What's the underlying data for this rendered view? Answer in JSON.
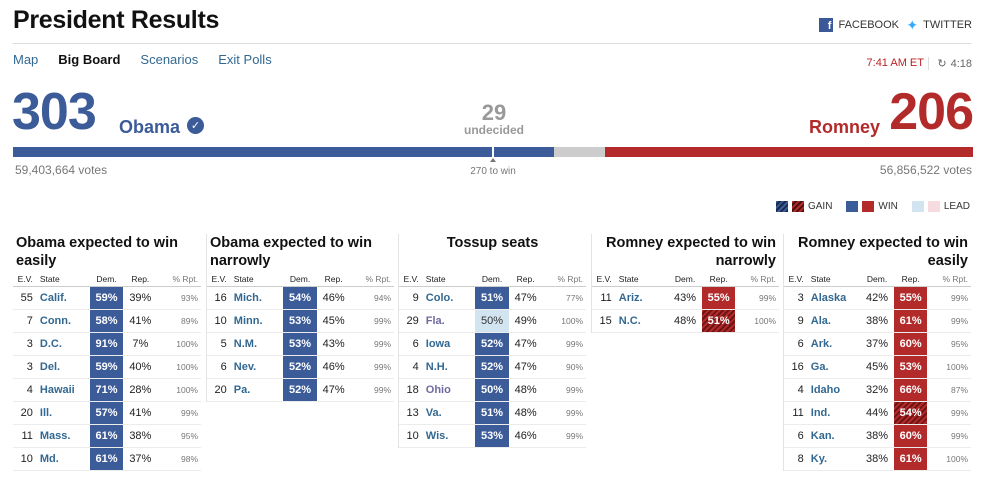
{
  "header": {
    "title": "President Results",
    "facebook": "FACEBOOK",
    "twitter": "TWITTER",
    "time": "7:41 AM ET",
    "refresh": "4:18"
  },
  "nav": [
    "Map",
    "Big Board",
    "Scenarios",
    "Exit Polls"
  ],
  "tally": {
    "dem_ev": "303",
    "dem_name": "Obama",
    "rep_ev": "206",
    "rep_name": "Romney",
    "undecided_ev": "29",
    "undecided_label": "undecided",
    "dem_votes": "59,403,664 votes",
    "rep_votes": "56,856,522 votes",
    "to_win": "270 to win",
    "dem_ev_value": 303,
    "undecided_ev_value": 29,
    "rep_ev_value": 206
  },
  "legend": {
    "gain": "GAIN",
    "win": "WIN",
    "lead": "LEAD"
  },
  "table_header": {
    "ev": "E.V.",
    "state": "State",
    "dem": "Dem.",
    "rep": "Rep.",
    "rpt": "% Rpt."
  },
  "colors": {
    "dem": "#3b5b99",
    "rep": "#b32a2a",
    "undecided": "#cccccc",
    "lead_dem": "#d2e4f0",
    "lead_rep": "#f6dbe0"
  },
  "columns": [
    {
      "title": "Obama expected to win easily",
      "align": "left",
      "rows": [
        {
          "ev": "55",
          "state": "Calif.",
          "dem": "59%",
          "rep": "39%",
          "rpt": "93%",
          "d": "win",
          "r": ""
        },
        {
          "ev": "7",
          "state": "Conn.",
          "dem": "58%",
          "rep": "41%",
          "rpt": "89%",
          "d": "win",
          "r": ""
        },
        {
          "ev": "3",
          "state": "D.C.",
          "dem": "91%",
          "rep": "7%",
          "rpt": "100%",
          "d": "win",
          "r": ""
        },
        {
          "ev": "3",
          "state": "Del.",
          "dem": "59%",
          "rep": "40%",
          "rpt": "100%",
          "d": "win",
          "r": ""
        },
        {
          "ev": "4",
          "state": "Hawaii",
          "dem": "71%",
          "rep": "28%",
          "rpt": "100%",
          "d": "win",
          "r": ""
        },
        {
          "ev": "20",
          "state": "Ill.",
          "dem": "57%",
          "rep": "41%",
          "rpt": "99%",
          "d": "win",
          "r": ""
        },
        {
          "ev": "11",
          "state": "Mass.",
          "dem": "61%",
          "rep": "38%",
          "rpt": "95%",
          "d": "win",
          "r": ""
        },
        {
          "ev": "10",
          "state": "Md.",
          "dem": "61%",
          "rep": "37%",
          "rpt": "98%",
          "d": "win",
          "r": ""
        }
      ]
    },
    {
      "title": "Obama expected to win narrowly",
      "align": "left",
      "rows": [
        {
          "ev": "16",
          "state": "Mich.",
          "dem": "54%",
          "rep": "46%",
          "rpt": "94%",
          "d": "win",
          "r": ""
        },
        {
          "ev": "10",
          "state": "Minn.",
          "dem": "53%",
          "rep": "45%",
          "rpt": "99%",
          "d": "win",
          "r": ""
        },
        {
          "ev": "5",
          "state": "N.M.",
          "dem": "53%",
          "rep": "43%",
          "rpt": "99%",
          "d": "win",
          "r": ""
        },
        {
          "ev": "6",
          "state": "Nev.",
          "dem": "52%",
          "rep": "46%",
          "rpt": "99%",
          "d": "win",
          "r": ""
        },
        {
          "ev": "20",
          "state": "Pa.",
          "dem": "52%",
          "rep": "47%",
          "rpt": "99%",
          "d": "win",
          "r": ""
        }
      ]
    },
    {
      "title": "Tossup seats",
      "align": "center",
      "rows": [
        {
          "ev": "9",
          "state": "Colo.",
          "dem": "51%",
          "rep": "47%",
          "rpt": "77%",
          "d": "win",
          "r": ""
        },
        {
          "ev": "29",
          "state": "Fla.",
          "dem": "50%",
          "rep": "49%",
          "rpt": "100%",
          "d": "lead",
          "r": "",
          "tossup": true
        },
        {
          "ev": "6",
          "state": "Iowa",
          "dem": "52%",
          "rep": "47%",
          "rpt": "99%",
          "d": "win",
          "r": ""
        },
        {
          "ev": "4",
          "state": "N.H.",
          "dem": "52%",
          "rep": "47%",
          "rpt": "90%",
          "d": "win",
          "r": ""
        },
        {
          "ev": "18",
          "state": "Ohio",
          "dem": "50%",
          "rep": "48%",
          "rpt": "99%",
          "d": "win",
          "r": "",
          "tossup": true
        },
        {
          "ev": "13",
          "state": "Va.",
          "dem": "51%",
          "rep": "48%",
          "rpt": "99%",
          "d": "win",
          "r": ""
        },
        {
          "ev": "10",
          "state": "Wis.",
          "dem": "53%",
          "rep": "46%",
          "rpt": "99%",
          "d": "win",
          "r": ""
        }
      ]
    },
    {
      "title": "Romney expected to win narrowly",
      "align": "right",
      "rows": [
        {
          "ev": "11",
          "state": "Ariz.",
          "dem": "43%",
          "rep": "55%",
          "rpt": "99%",
          "d": "",
          "r": "win"
        },
        {
          "ev": "15",
          "state": "N.C.",
          "dem": "48%",
          "rep": "51%",
          "rpt": "100%",
          "d": "",
          "r": "gain"
        }
      ]
    },
    {
      "title": "Romney expected to win easily",
      "align": "right",
      "rows": [
        {
          "ev": "3",
          "state": "Alaska",
          "dem": "42%",
          "rep": "55%",
          "rpt": "99%",
          "d": "",
          "r": "win"
        },
        {
          "ev": "9",
          "state": "Ala.",
          "dem": "38%",
          "rep": "61%",
          "rpt": "99%",
          "d": "",
          "r": "win"
        },
        {
          "ev": "6",
          "state": "Ark.",
          "dem": "37%",
          "rep": "60%",
          "rpt": "95%",
          "d": "",
          "r": "win"
        },
        {
          "ev": "16",
          "state": "Ga.",
          "dem": "45%",
          "rep": "53%",
          "rpt": "100%",
          "d": "",
          "r": "win"
        },
        {
          "ev": "4",
          "state": "Idaho",
          "dem": "32%",
          "rep": "66%",
          "rpt": "87%",
          "d": "",
          "r": "win"
        },
        {
          "ev": "11",
          "state": "Ind.",
          "dem": "44%",
          "rep": "54%",
          "rpt": "99%",
          "d": "",
          "r": "gain"
        },
        {
          "ev": "6",
          "state": "Kan.",
          "dem": "38%",
          "rep": "60%",
          "rpt": "99%",
          "d": "",
          "r": "win"
        },
        {
          "ev": "8",
          "state": "Ky.",
          "dem": "38%",
          "rep": "61%",
          "rpt": "100%",
          "d": "",
          "r": "win"
        }
      ]
    }
  ]
}
